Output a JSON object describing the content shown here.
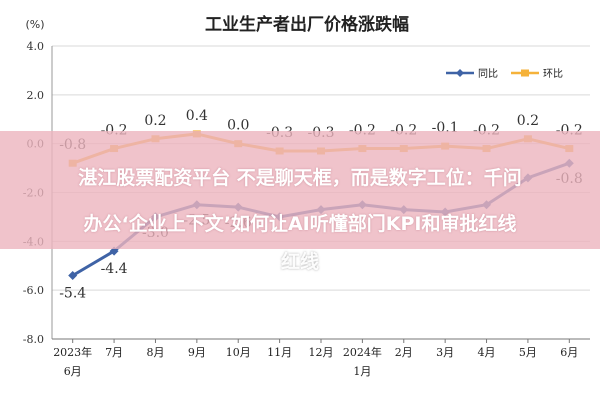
{
  "chart_data": {
    "type": "line",
    "title": "工业生产者出厂价格涨跌幅",
    "unit": "(%)",
    "ylim": [
      -8.0,
      4.0
    ],
    "y_ticks": [
      "4.0",
      "2.0",
      "0.0",
      "-2.0",
      "-4.0",
      "-6.0",
      "-8.0"
    ],
    "categories": [
      "2023年6月",
      "7月",
      "8月",
      "9月",
      "10月",
      "11月",
      "12月",
      "2024年1月",
      "2月",
      "3月",
      "4月",
      "5月",
      "6月"
    ],
    "x_tick_lines": [
      [
        "2023年",
        "6月"
      ],
      [
        "7月"
      ],
      [
        "8月"
      ],
      [
        "9月"
      ],
      [
        "10月"
      ],
      [
        "11月"
      ],
      [
        "12月"
      ],
      [
        "2024年",
        "1月"
      ],
      [
        "2月"
      ],
      [
        "3月"
      ],
      [
        "4月"
      ],
      [
        "5月"
      ],
      [
        "6月"
      ]
    ],
    "series": [
      {
        "name": "同比",
        "color": "#3f63a6",
        "values": [
          -5.4,
          -4.4,
          -3.0,
          -2.5,
          -2.6,
          -3.0,
          -2.7,
          -2.5,
          -2.7,
          -2.8,
          -2.5,
          -1.4,
          -0.8
        ],
        "labels": [
          "-5.4",
          "-4.4",
          "-3.0",
          "-2.5",
          "-2.6",
          "",
          "",
          "",
          "",
          "",
          "",
          "",
          "-0.8"
        ]
      },
      {
        "name": "环比",
        "color": "#f5b23a",
        "values": [
          -0.8,
          -0.2,
          0.2,
          0.4,
          0.0,
          -0.3,
          -0.3,
          -0.2,
          -0.2,
          -0.1,
          -0.2,
          0.2,
          -0.2
        ],
        "labels": [
          "-0.8",
          "-0.2",
          "0.2",
          "0.4",
          "0.0",
          "-0.3",
          "-0.3",
          "-0.2",
          "-0.2",
          "-0.1",
          "-0.2",
          "0.2",
          "-0.2"
        ]
      }
    ],
    "grid": true,
    "legend_position": "top-right"
  },
  "overlay": {
    "line1": "湛江股票配资平台 不是聊天框，而是数字工位：千问",
    "line2": "办公‘企业上下文’如何让AI听懂部门KPI和审批红线",
    "line3": "红线"
  }
}
